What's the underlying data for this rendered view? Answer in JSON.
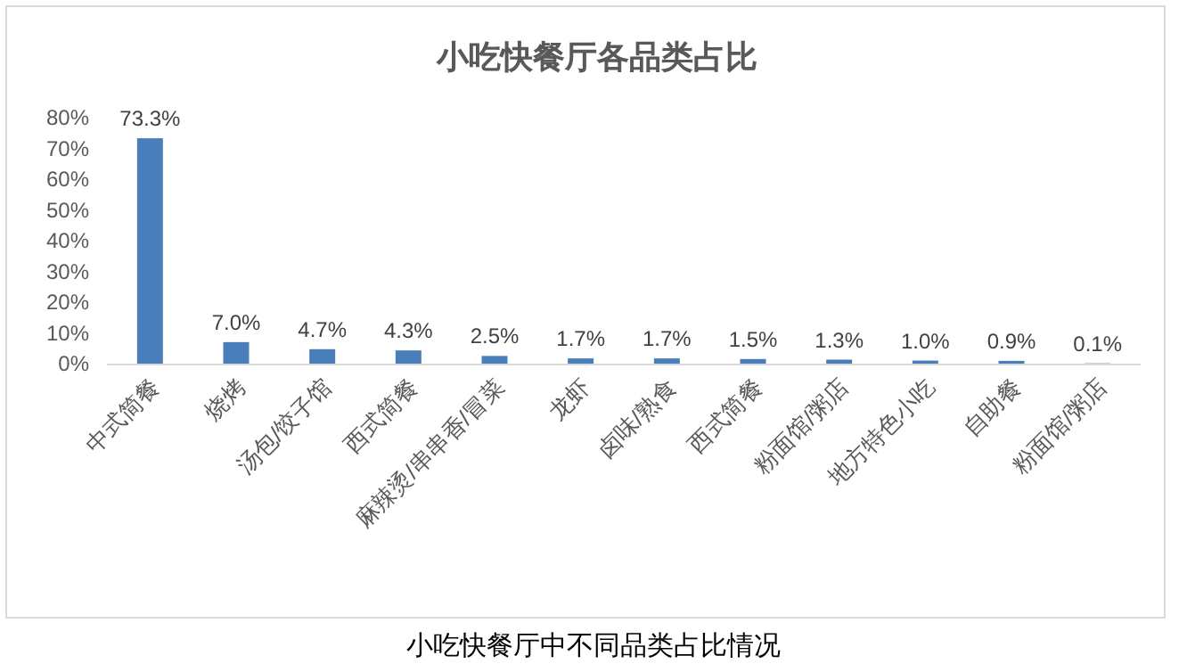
{
  "chart_data": {
    "type": "bar",
    "title": "小吃快餐厅各品类占比",
    "categories": [
      "中式简餐",
      "烧烤",
      "汤包/饺子馆",
      "西式简餐",
      "麻辣烫/串串香/冒菜",
      "龙虾",
      "卤味/熟食",
      "西式简餐",
      "粉面馆/粥店",
      "地方特色小吃",
      "自助餐",
      "粉面馆/粥店"
    ],
    "values": [
      73.3,
      7.0,
      4.7,
      4.3,
      2.5,
      1.7,
      1.7,
      1.5,
      1.3,
      1.0,
      0.9,
      0.1
    ],
    "value_labels": [
      "73.3%",
      "7.0%",
      "4.7%",
      "4.3%",
      "2.5%",
      "1.7%",
      "1.7%",
      "1.5%",
      "1.3%",
      "1.0%",
      "0.9%",
      "0.1%"
    ],
    "color": "#4a7ebb",
    "ylim": [
      0,
      80
    ],
    "yticks": [
      {
        "value": 0,
        "label": "0%"
      },
      {
        "value": 10,
        "label": "10%"
      },
      {
        "value": 20,
        "label": "20%"
      },
      {
        "value": 30,
        "label": "30%"
      },
      {
        "value": 40,
        "label": "40%"
      },
      {
        "value": 50,
        "label": "50%"
      },
      {
        "value": 60,
        "label": "60%"
      },
      {
        "value": 70,
        "label": "70%"
      },
      {
        "value": 80,
        "label": "80%"
      }
    ],
    "annotations": [
      "小吃快餐厅中不同品类占比情况"
    ]
  }
}
